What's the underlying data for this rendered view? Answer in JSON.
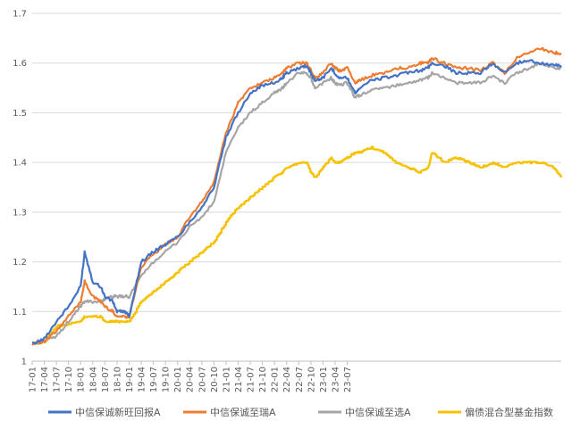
{
  "chart_data": {
    "type": "line",
    "title": "",
    "xlabel": "",
    "ylabel": "",
    "ylim": [
      1.0,
      1.7
    ],
    "y_ticks": [
      "1",
      "1.1",
      "1.2",
      "1.3",
      "1.4",
      "1.5",
      "1.6",
      "1.7"
    ],
    "x_ticks": [
      "17-01",
      "17-04",
      "17-07",
      "17-10",
      "18-01",
      "18-04",
      "18-07",
      "18-10",
      "19-01",
      "19-04",
      "19-07",
      "19-10",
      "20-01",
      "20-04",
      "20-07",
      "20-10",
      "21-01",
      "21-04",
      "21-07",
      "21-10",
      "22-01",
      "22-04",
      "22-07",
      "22-10",
      "23-01",
      "23-04",
      "23-07"
    ],
    "grid": true,
    "legend_position": "bottom",
    "x_months": [
      0,
      3,
      6,
      9,
      12,
      13,
      15,
      17,
      18,
      20,
      21,
      23,
      24,
      27,
      30,
      33,
      36,
      39,
      42,
      45,
      48,
      51,
      54,
      57,
      60,
      62,
      63,
      66,
      68,
      69,
      70,
      72,
      74,
      75,
      76,
      78,
      80,
      81,
      84,
      87,
      90,
      93,
      96,
      98,
      99,
      102,
      105,
      108,
      111,
      114,
      117,
      120,
      123,
      126,
      129,
      131
    ],
    "series": [
      {
        "name": "中信保诚新旺回报A",
        "color": "#4472c4",
        "values": [
          1.035,
          1.045,
          1.08,
          1.11,
          1.15,
          1.22,
          1.16,
          1.15,
          1.13,
          1.12,
          1.1,
          1.1,
          1.09,
          1.2,
          1.22,
          1.235,
          1.25,
          1.28,
          1.31,
          1.35,
          1.45,
          1.5,
          1.54,
          1.555,
          1.56,
          1.57,
          1.58,
          1.59,
          1.595,
          1.58,
          1.565,
          1.57,
          1.59,
          1.58,
          1.57,
          1.57,
          1.54,
          1.55,
          1.565,
          1.57,
          1.575,
          1.58,
          1.585,
          1.59,
          1.6,
          1.595,
          1.58,
          1.58,
          1.58,
          1.6,
          1.58,
          1.6,
          1.605,
          1.6,
          1.595,
          1.595
        ]
      },
      {
        "name": "中信保诚至瑞A",
        "color": "#ed7d31",
        "values": [
          1.035,
          1.04,
          1.06,
          1.09,
          1.12,
          1.16,
          1.13,
          1.12,
          1.11,
          1.1,
          1.09,
          1.09,
          1.09,
          1.19,
          1.215,
          1.235,
          1.25,
          1.29,
          1.32,
          1.36,
          1.46,
          1.52,
          1.55,
          1.56,
          1.57,
          1.58,
          1.59,
          1.6,
          1.6,
          1.585,
          1.57,
          1.58,
          1.6,
          1.59,
          1.585,
          1.59,
          1.56,
          1.565,
          1.575,
          1.58,
          1.59,
          1.59,
          1.6,
          1.6,
          1.61,
          1.6,
          1.59,
          1.59,
          1.585,
          1.6,
          1.58,
          1.61,
          1.62,
          1.63,
          1.62,
          1.62
        ]
      },
      {
        "name": "中信保诚至选A",
        "color": "#a5a5a5",
        "values": [
          1.035,
          1.04,
          1.05,
          1.08,
          1.11,
          1.12,
          1.12,
          1.12,
          1.125,
          1.13,
          1.13,
          1.13,
          1.13,
          1.17,
          1.2,
          1.22,
          1.24,
          1.27,
          1.29,
          1.32,
          1.42,
          1.47,
          1.5,
          1.52,
          1.54,
          1.55,
          1.56,
          1.58,
          1.58,
          1.57,
          1.55,
          1.56,
          1.57,
          1.56,
          1.555,
          1.56,
          1.53,
          1.535,
          1.545,
          1.55,
          1.555,
          1.56,
          1.565,
          1.57,
          1.58,
          1.57,
          1.56,
          1.56,
          1.56,
          1.575,
          1.56,
          1.58,
          1.59,
          1.6,
          1.59,
          1.59
        ]
      },
      {
        "name": "偏债混合型基金指数",
        "color": "#f5c100",
        "values": [
          1.035,
          1.04,
          1.07,
          1.075,
          1.08,
          1.09,
          1.09,
          1.09,
          1.08,
          1.08,
          1.08,
          1.08,
          1.08,
          1.12,
          1.14,
          1.16,
          1.18,
          1.2,
          1.22,
          1.24,
          1.28,
          1.31,
          1.33,
          1.35,
          1.37,
          1.38,
          1.39,
          1.4,
          1.4,
          1.38,
          1.37,
          1.39,
          1.41,
          1.4,
          1.4,
          1.41,
          1.42,
          1.42,
          1.43,
          1.42,
          1.4,
          1.39,
          1.38,
          1.39,
          1.42,
          1.4,
          1.41,
          1.4,
          1.39,
          1.4,
          1.39,
          1.4,
          1.4,
          1.4,
          1.39,
          1.37
        ]
      }
    ]
  }
}
